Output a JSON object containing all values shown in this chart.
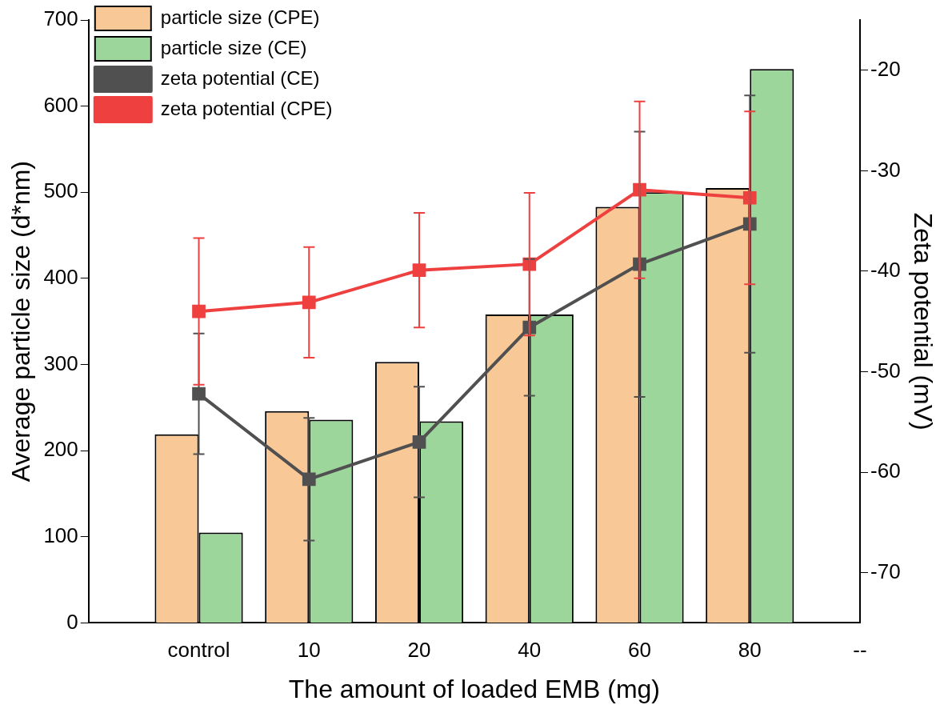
{
  "chart_data": {
    "type": "bar",
    "xlabel": "The amount of loaded EMB (mg)",
    "ylabel": "Average particle size (d*nm)",
    "y2label": "Zeta potential (mV)",
    "categories": [
      null,
      "control",
      "10",
      "20",
      "40",
      "60",
      "80",
      "--"
    ],
    "series": [
      {
        "name": "particle size (CPE)",
        "color": "#f9c897",
        "values": [
          null,
          219,
          246,
          303,
          358,
          483,
          505,
          null
        ]
      },
      {
        "name": "particle size (CE)",
        "color": "#9dd69b",
        "values": [
          null,
          105,
          236,
          234,
          358,
          500,
          643,
          null
        ]
      },
      {
        "name": "zeta potential (CE)",
        "type": "line",
        "axis": "y2",
        "color": "#505050",
        "values": [
          null,
          -52.2,
          -60.7,
          -57.0,
          -45.6,
          -39.3,
          -35.3,
          null
        ],
        "errors": [
          null,
          6.0,
          6.1,
          5.5,
          6.8,
          13.2,
          12.8,
          null
        ]
      },
      {
        "name": "zeta potential (CPE)",
        "type": "line",
        "axis": "y2",
        "color": "#ef4040",
        "values": [
          null,
          -44.0,
          -43.1,
          -39.9,
          -39.3,
          -31.9,
          -32.7,
          null
        ],
        "errors": [
          null,
          7.3,
          5.5,
          5.7,
          7.1,
          8.8,
          8.6,
          null
        ]
      }
    ],
    "ylim": [
      0,
      700
    ],
    "yticks": [
      0,
      100,
      200,
      300,
      400,
      500,
      600,
      700
    ],
    "y2lim": [
      -75,
      -15
    ],
    "y2ticks": [
      -70,
      -60,
      -50,
      -40,
      -30,
      -20
    ],
    "marker": "square",
    "line_style": "solid",
    "grid": false,
    "legend": "top left"
  }
}
